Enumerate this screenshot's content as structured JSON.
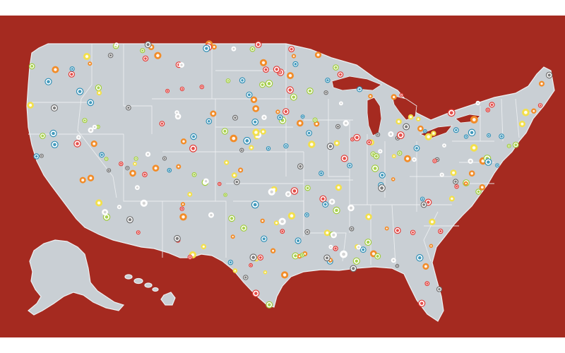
{
  "colors": {
    "background": "#a52a20",
    "land": "#c9cfd4",
    "borders": "#eef1f3",
    "marker_palette": [
      "#e23a35",
      "#2f8fb6",
      "#9fcc3a",
      "#f28c28",
      "#f3e04b",
      "#ffffff",
      "#6e6e6e"
    ]
  },
  "markers": {
    "count_estimate": 300,
    "styles": [
      "red-ring",
      "blue-ring",
      "green-ring",
      "orange-dot",
      "yellow-dot",
      "white-dot",
      "gray-ring"
    ]
  },
  "map": {
    "regions": [
      "contiguous-us",
      "alaska",
      "hawaii",
      "great-lakes"
    ],
    "state_borders": true
  }
}
